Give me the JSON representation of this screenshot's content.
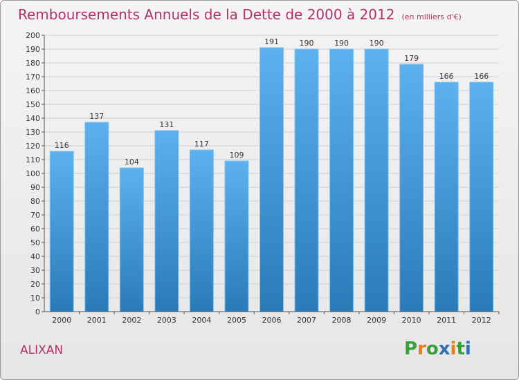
{
  "title": "Remboursements Annuels de la Dette de 2000 à 2012",
  "subtitle": "(en milliers d'€)",
  "commune": "ALIXAN",
  "logo": {
    "text": "Proxiti"
  },
  "colors": {
    "title": "#b5306a",
    "bar_top": "#5cb1ee",
    "bar_bottom": "#2a7ab8",
    "grid": "#cfcfcf"
  },
  "chart_data": {
    "type": "bar",
    "title": "Remboursements Annuels de la Dette de 2000 à 2012",
    "categories": [
      "2000",
      "2001",
      "2002",
      "2003",
      "2004",
      "2005",
      "2006",
      "2007",
      "2008",
      "2009",
      "2010",
      "2011",
      "2012"
    ],
    "values": [
      116,
      137,
      104,
      131,
      117,
      109,
      191,
      190,
      190,
      190,
      179,
      166,
      166
    ],
    "ylim": [
      0,
      200
    ],
    "yticks": [
      0,
      10,
      20,
      30,
      40,
      50,
      60,
      70,
      80,
      90,
      100,
      110,
      120,
      130,
      140,
      150,
      160,
      170,
      180,
      190,
      200
    ],
    "grid": true,
    "data_labels": true
  }
}
